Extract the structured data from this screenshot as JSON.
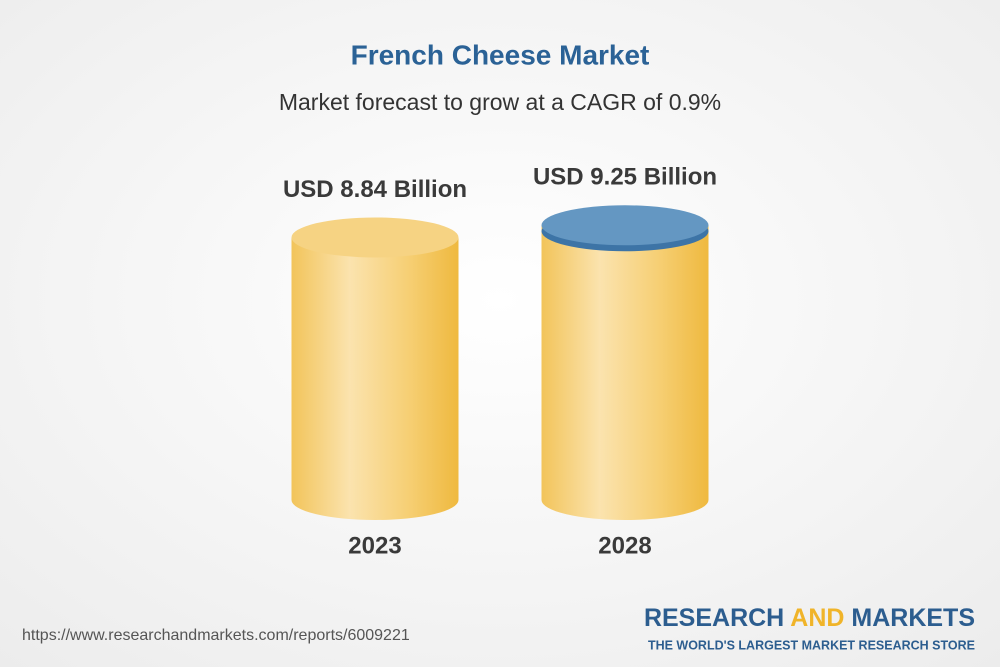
{
  "chart_data": {
    "type": "cylinder",
    "title": "French Cheese Market",
    "subtitle": "Market forecast to grow at a CAGR of 0.9%",
    "categories": [
      "2023",
      "2028"
    ],
    "values": [
      8.84,
      9.25
    ],
    "value_labels": [
      "USD 8.84 Billion",
      "USD 9.25 Billion"
    ],
    "color": "#f2c252",
    "cap_colors": [
      "#f6d383",
      "#6497c2"
    ]
  },
  "footer": {
    "url": "https://www.researchandmarkets.com/reports/6009221",
    "brand": [
      "RESEARCH",
      "AND",
      "MARKETS"
    ],
    "tagline": "THE WORLD'S LARGEST MARKET RESEARCH STORE"
  }
}
